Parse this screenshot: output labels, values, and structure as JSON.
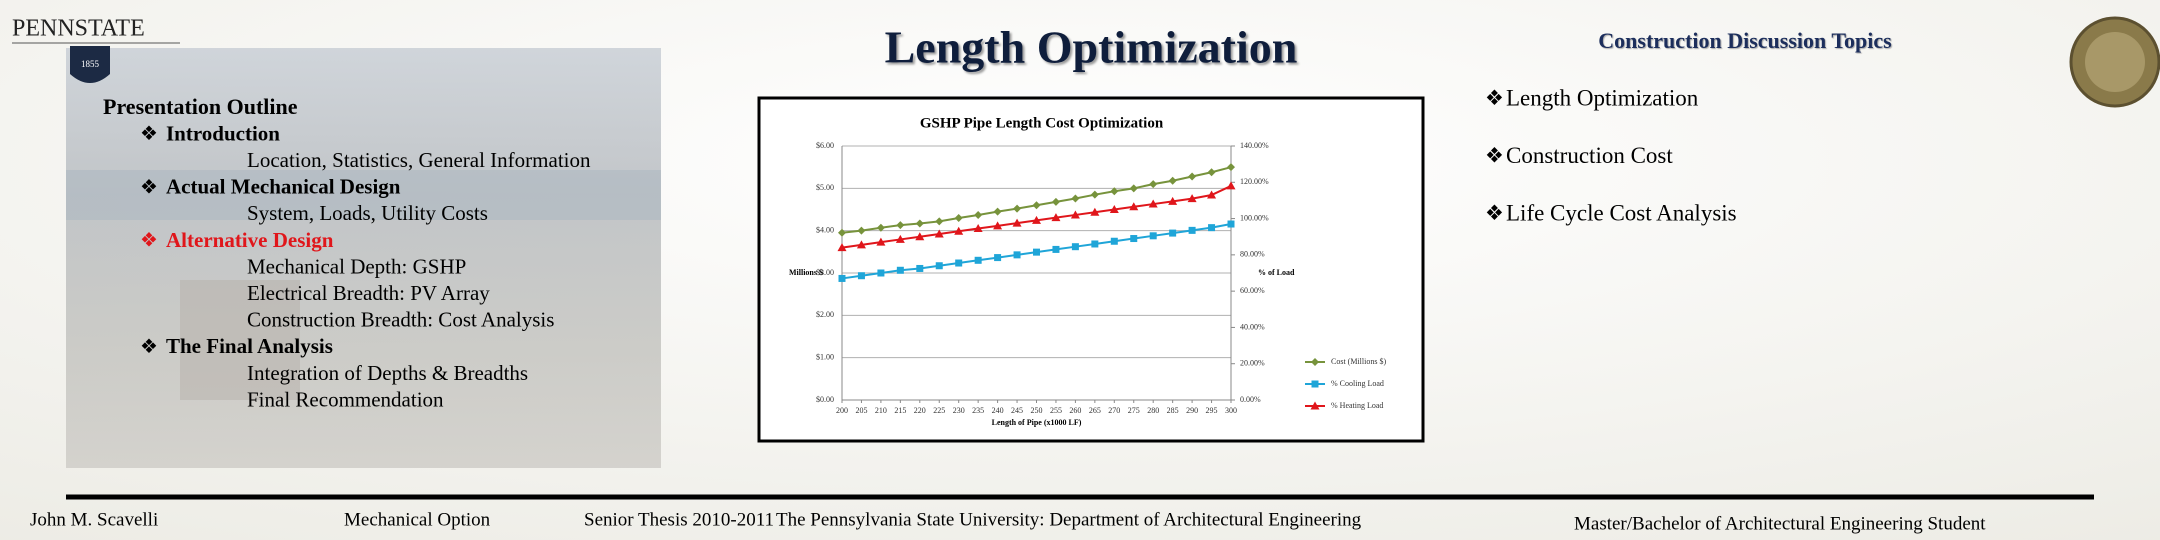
{
  "header": {
    "logo_text": "PENNSTATE",
    "logo_year": "1855",
    "title": "Length Optimization"
  },
  "outline": {
    "title": "Presentation Outline",
    "sections": [
      {
        "heading": "Introduction",
        "items": [
          "Location, Statistics, General Information"
        ]
      },
      {
        "heading": "Actual Mechanical Design",
        "items": [
          "System, Loads, Utility Costs"
        ]
      },
      {
        "heading": "Alternative Design",
        "highlighted": true,
        "items": [
          "Mechanical Depth: GSHP",
          "Electrical Breadth: PV Array",
          "Construction Breadth: Cost Analysis"
        ]
      },
      {
        "heading": "The Final Analysis",
        "items": [
          "Integration of Depths & Breadths",
          "Final Recommendation"
        ]
      }
    ]
  },
  "topics": {
    "title": "Construction Discussion Topics",
    "items": [
      "Length Optimization",
      "Construction Cost",
      "Life Cycle Cost Analysis"
    ]
  },
  "footer": {
    "items": [
      "John M. Scavelli",
      "Mechanical Option",
      "Senior Thesis 2010-2011",
      "The Pennsylvania State University: Department of Architectural Engineering",
      "Master/Bachelor of Architectural Engineering Student"
    ]
  },
  "chart_data": {
    "type": "line",
    "title": "GSHP Pipe Length Cost Optimization",
    "x_label": "Length of Pipe (x1000 LF)",
    "y_label": "Millions $",
    "y2_label": "% of Load",
    "x": [
      200,
      205,
      210,
      215,
      220,
      225,
      230,
      235,
      240,
      245,
      250,
      255,
      260,
      265,
      270,
      275,
      280,
      285,
      290,
      295,
      300
    ],
    "xlim": [
      200,
      300
    ],
    "xticks": [
      200,
      205,
      210,
      215,
      220,
      225,
      230,
      235,
      240,
      245,
      250,
      255,
      260,
      265,
      270,
      275,
      280,
      285,
      290,
      295,
      300
    ],
    "ylim": [
      0,
      6
    ],
    "yticks": [
      {
        "value": 0,
        "label": "$0.00"
      },
      {
        "value": 1,
        "label": "$1.00"
      },
      {
        "value": 2,
        "label": "$2.00"
      },
      {
        "value": 3,
        "label": "$3.00"
      },
      {
        "value": 4,
        "label": "$4.00"
      },
      {
        "value": 5,
        "label": "$5.00"
      },
      {
        "value": 6,
        "label": "$6.00"
      }
    ],
    "y2lim": [
      0,
      140
    ],
    "y2ticks": [
      {
        "value": 0,
        "label": "0.00%"
      },
      {
        "value": 20,
        "label": "20.00%"
      },
      {
        "value": 40,
        "label": "40.00%"
      },
      {
        "value": 60,
        "label": "60.00%"
      },
      {
        "value": 80,
        "label": "80.00%"
      },
      {
        "value": 100,
        "label": "100.00%"
      },
      {
        "value": 120,
        "label": "120.00%"
      },
      {
        "value": 140,
        "label": "140.00%"
      }
    ],
    "grid": true,
    "legend": "right",
    "series": [
      {
        "name": "Cost (Millions $)",
        "color": "#77933c",
        "marker": "diamond",
        "values": [
          3.95,
          4.0,
          4.07,
          4.13,
          4.17,
          4.22,
          4.3,
          4.37,
          4.45,
          4.52,
          4.6,
          4.68,
          4.76,
          4.85,
          4.93,
          5.0,
          5.1,
          5.18,
          5.28,
          5.38,
          5.5
        ]
      },
      {
        "name": "% Cooling Load",
        "color": "#1fa5d8",
        "marker": "square",
        "axis": "y2",
        "values": [
          67,
          68.5,
          70,
          71.5,
          72.5,
          74,
          75.5,
          77,
          78.5,
          80,
          81.5,
          83,
          84.5,
          86,
          87.5,
          89,
          90.5,
          92,
          93.5,
          95,
          97
        ]
      },
      {
        "name": "% Heating Load",
        "color": "#e0161b",
        "marker": "triangle",
        "axis": "y2",
        "values": [
          84,
          85.5,
          87,
          88.5,
          90,
          91.5,
          93,
          94.5,
          96,
          97.5,
          99,
          100.5,
          102,
          103.5,
          105,
          106.5,
          108,
          109.5,
          111,
          113,
          118
        ]
      }
    ]
  }
}
